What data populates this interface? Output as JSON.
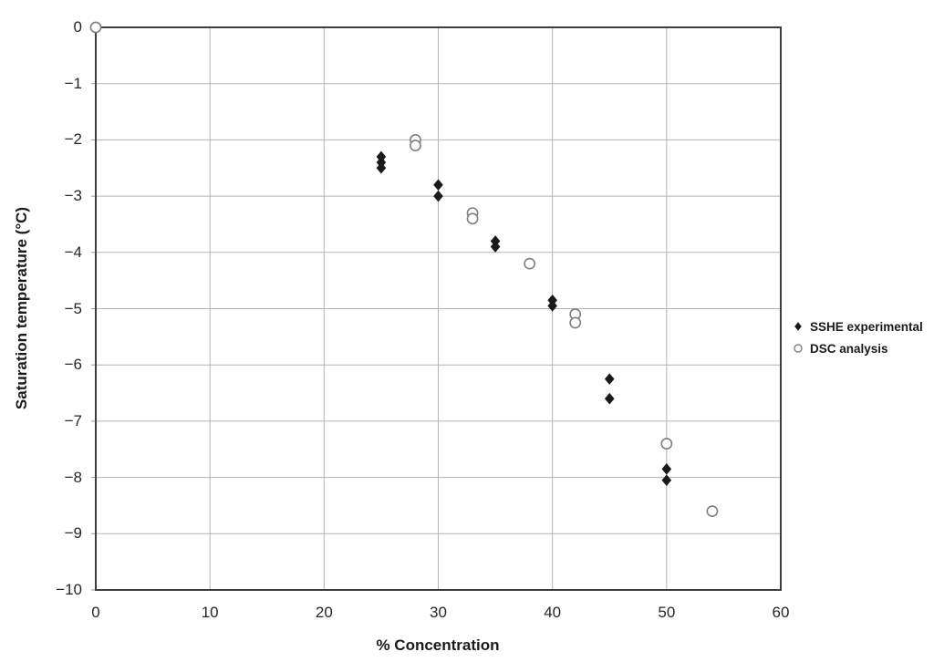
{
  "chart_data": {
    "type": "scatter",
    "title": "",
    "xlabel": "% Concentration",
    "ylabel": "Saturation temperature (°C)",
    "xlim": [
      0,
      60
    ],
    "ylim": [
      -10,
      0
    ],
    "grid": true,
    "legend_position": "right-outside",
    "x_ticks": [
      0,
      10,
      20,
      30,
      40,
      50,
      60
    ],
    "y_ticks": [
      0,
      -1,
      -2,
      -3,
      -4,
      -5,
      -6,
      -7,
      -8,
      -9,
      -10
    ],
    "x_tick_labels": [
      "0",
      "10",
      "20",
      "30",
      "40",
      "50",
      "60"
    ],
    "y_tick_labels": [
      "0",
      "−1",
      "−2",
      "−3",
      "−4",
      "−5",
      "−6",
      "−7",
      "−8",
      "−9",
      "−10"
    ],
    "series": [
      {
        "name": "SSHE experimental",
        "marker": "filled-diamond",
        "color": "#1a1a1a",
        "points": [
          [
            25,
            -2.3
          ],
          [
            25,
            -2.4
          ],
          [
            25,
            -2.5
          ],
          [
            30,
            -2.8
          ],
          [
            30,
            -3.0
          ],
          [
            35,
            -3.8
          ],
          [
            35,
            -3.9
          ],
          [
            40,
            -4.85
          ],
          [
            40,
            -4.95
          ],
          [
            45,
            -6.25
          ],
          [
            45,
            -6.6
          ],
          [
            50,
            -7.85
          ],
          [
            50,
            -8.05
          ]
        ]
      },
      {
        "name": "DSC analysis",
        "marker": "open-circle",
        "color": "#7f7f7f",
        "points": [
          [
            0,
            0
          ],
          [
            28,
            -2.0
          ],
          [
            28,
            -2.1
          ],
          [
            33,
            -3.3
          ],
          [
            33,
            -3.4
          ],
          [
            38,
            -4.2
          ],
          [
            42,
            -5.1
          ],
          [
            42,
            -5.25
          ],
          [
            50,
            -7.4
          ],
          [
            54,
            -8.6
          ]
        ]
      }
    ],
    "colors": {
      "grid": "#b3b3b3",
      "frame": "#3d3d3d",
      "tick": "#9a9a9a",
      "background": "#ffffff"
    }
  }
}
